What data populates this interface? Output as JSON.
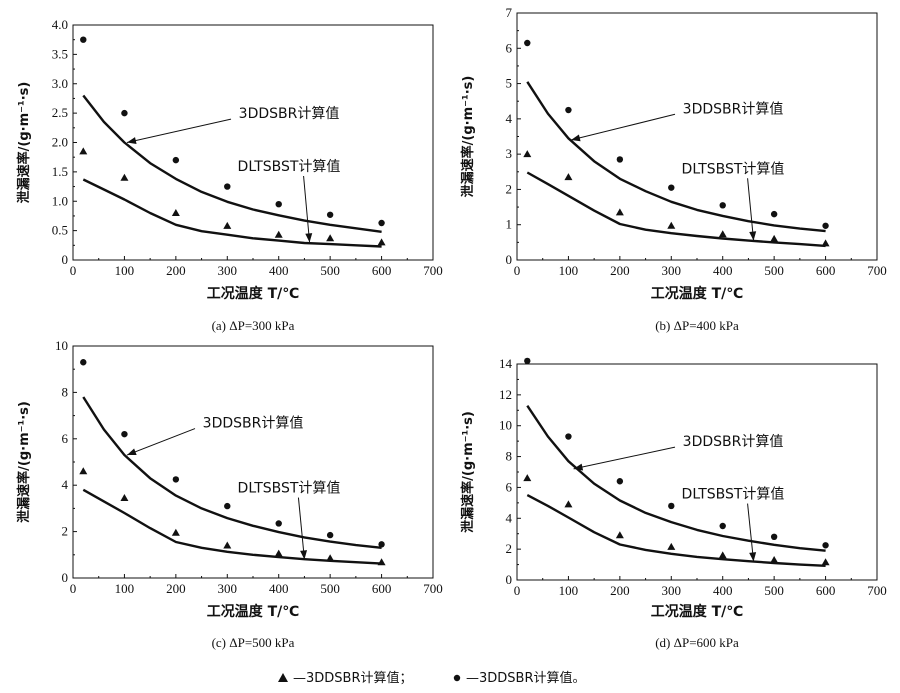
{
  "chart_data": [
    {
      "type": "line",
      "caption": "(a) ΔP=300 kPa",
      "xlabel": "工况温度 T/℃",
      "ylabel": "泄漏速率/(g·m⁻¹·s)",
      "xlim": [
        0,
        700
      ],
      "ylim": [
        0,
        4.0
      ],
      "xticks": [
        "0",
        "100",
        "200",
        "300",
        "400",
        "500",
        "600",
        "700"
      ],
      "yticks": [
        "0",
        "0.5",
        "1.0",
        "1.5",
        "2.0",
        "2.5",
        "3.0",
        "3.5",
        "4.0"
      ],
      "series": [
        {
          "name": "3DDSBR计算值",
          "marker": "circle",
          "x": [
            20,
            100,
            200,
            300,
            400,
            500,
            600
          ],
          "y": [
            3.75,
            2.5,
            1.7,
            1.25,
            0.95,
            0.77,
            0.63
          ]
        },
        {
          "name": "3DDSBR计算值",
          "marker": "triangle",
          "x": [
            20,
            100,
            200,
            300,
            400,
            500,
            600
          ],
          "y": [
            1.85,
            1.4,
            0.8,
            0.58,
            0.43,
            0.37,
            0.3
          ]
        },
        {
          "name": "3DDSBR计算值",
          "style": "line",
          "x": [
            20,
            60,
            100,
            150,
            200,
            250,
            300,
            350,
            400,
            450,
            500,
            550,
            600
          ],
          "y": [
            2.8,
            2.35,
            2.0,
            1.65,
            1.38,
            1.16,
            0.99,
            0.86,
            0.76,
            0.67,
            0.6,
            0.54,
            0.48
          ]
        },
        {
          "name": "DLTSBST计算值",
          "style": "line",
          "x": [
            20,
            60,
            100,
            150,
            200,
            250,
            300,
            350,
            400,
            450,
            500,
            550,
            600
          ],
          "y": [
            1.37,
            1.2,
            1.03,
            0.8,
            0.6,
            0.49,
            0.43,
            0.37,
            0.33,
            0.29,
            0.27,
            0.25,
            0.23
          ]
        }
      ],
      "annotations": [
        {
          "text": "3DDSBR计算值",
          "x": 420,
          "y": 2.5,
          "target": [
            105,
            2.0
          ]
        },
        {
          "text": "DLTSBST计算值",
          "x": 420,
          "y": 1.6,
          "target": [
            460,
            0.3
          ]
        }
      ]
    },
    {
      "type": "line",
      "caption": "(b) ΔP=400 kPa",
      "xlabel": "工况温度 T/℃",
      "ylabel": "泄漏速率/(g·m⁻¹·s)",
      "xlim": [
        0,
        700
      ],
      "ylim": [
        0,
        7
      ],
      "xticks": [
        "0",
        "100",
        "200",
        "300",
        "400",
        "500",
        "600",
        "700"
      ],
      "yticks": [
        "0",
        "1",
        "2",
        "3",
        "4",
        "5",
        "6",
        "7"
      ],
      "series": [
        {
          "name": "3DDSBR计算值",
          "marker": "circle",
          "x": [
            20,
            100,
            200,
            300,
            400,
            500,
            600
          ],
          "y": [
            6.15,
            4.25,
            2.85,
            2.05,
            1.55,
            1.3,
            0.97
          ]
        },
        {
          "name": "3DDSBR计算值",
          "marker": "triangle",
          "x": [
            20,
            100,
            200,
            300,
            400,
            500,
            600
          ],
          "y": [
            3.0,
            2.35,
            1.35,
            0.97,
            0.73,
            0.6,
            0.47
          ]
        },
        {
          "name": "3DDSBR计算值",
          "style": "line",
          "x": [
            20,
            60,
            100,
            150,
            200,
            250,
            300,
            350,
            400,
            450,
            500,
            550,
            600
          ],
          "y": [
            5.05,
            4.15,
            3.45,
            2.8,
            2.3,
            1.95,
            1.65,
            1.42,
            1.25,
            1.1,
            0.98,
            0.89,
            0.82
          ]
        },
        {
          "name": "DLTSBST计算值",
          "style": "line",
          "x": [
            20,
            60,
            100,
            150,
            200,
            250,
            300,
            350,
            400,
            450,
            500,
            550,
            600
          ],
          "y": [
            2.48,
            2.15,
            1.82,
            1.4,
            1.02,
            0.86,
            0.76,
            0.68,
            0.61,
            0.55,
            0.5,
            0.45,
            0.4
          ]
        }
      ],
      "annotations": [
        {
          "text": "3DDSBR计算值",
          "x": 420,
          "y": 4.3,
          "target": [
            105,
            3.4
          ]
        },
        {
          "text": "DLTSBST计算值",
          "x": 420,
          "y": 2.6,
          "target": [
            460,
            0.55
          ]
        }
      ]
    },
    {
      "type": "line",
      "caption": "(c) ΔP=500 kPa",
      "xlabel": "工况温度 T/℃",
      "ylabel": "泄漏速率/(g·m⁻¹·s)",
      "xlim": [
        0,
        700
      ],
      "ylim": [
        0,
        10
      ],
      "xticks": [
        "0",
        "100",
        "200",
        "300",
        "400",
        "500",
        "600",
        "700"
      ],
      "yticks": [
        "0",
        "2",
        "4",
        "6",
        "8",
        "10"
      ],
      "series": [
        {
          "name": "3DDSBR计算值",
          "marker": "circle",
          "x": [
            20,
            100,
            200,
            300,
            400,
            500,
            600
          ],
          "y": [
            9.3,
            6.2,
            4.25,
            3.1,
            2.35,
            1.85,
            1.45
          ]
        },
        {
          "name": "3DDSBR计算值",
          "marker": "triangle",
          "x": [
            20,
            100,
            200,
            300,
            400,
            500,
            600
          ],
          "y": [
            4.6,
            3.45,
            1.95,
            1.4,
            1.05,
            0.85,
            0.68
          ]
        },
        {
          "name": "3DDSBR计算值",
          "style": "line",
          "x": [
            20,
            60,
            100,
            150,
            200,
            250,
            300,
            350,
            400,
            450,
            500,
            550,
            600
          ],
          "y": [
            7.8,
            6.4,
            5.3,
            4.3,
            3.55,
            3.0,
            2.58,
            2.25,
            1.98,
            1.75,
            1.57,
            1.42,
            1.3
          ]
        },
        {
          "name": "DLTSBST计算值",
          "style": "line",
          "x": [
            20,
            60,
            100,
            150,
            200,
            250,
            300,
            350,
            400,
            450,
            500,
            550,
            600
          ],
          "y": [
            3.8,
            3.3,
            2.8,
            2.15,
            1.55,
            1.3,
            1.13,
            1.0,
            0.9,
            0.81,
            0.74,
            0.68,
            0.62
          ]
        }
      ],
      "annotations": [
        {
          "text": "3DDSBR计算值",
          "x": 350,
          "y": 6.7,
          "target": [
            105,
            5.3
          ]
        },
        {
          "text": "DLTSBST计算值",
          "x": 420,
          "y": 3.9,
          "target": [
            450,
            0.8
          ]
        }
      ]
    },
    {
      "type": "line",
      "caption": "(d) ΔP=600 kPa",
      "xlabel": "工况温度 T/℃",
      "ylabel": "泄漏速率/(g·m⁻¹·s)",
      "xlim": [
        0,
        700
      ],
      "ylim": [
        0,
        14
      ],
      "xticks": [
        "0",
        "100",
        "200",
        "300",
        "400",
        "500",
        "600",
        "700"
      ],
      "yticks": [
        "0",
        "2",
        "4",
        "6",
        "8",
        "10",
        "12",
        "14"
      ],
      "series": [
        {
          "name": "3DDSBR计算值",
          "marker": "circle",
          "x": [
            20,
            100,
            200,
            300,
            400,
            500,
            600
          ],
          "y": [
            14.2,
            9.3,
            6.4,
            4.8,
            3.5,
            2.8,
            2.25
          ]
        },
        {
          "name": "3DDSBR计算值",
          "marker": "triangle",
          "x": [
            20,
            100,
            200,
            300,
            400,
            500,
            600
          ],
          "y": [
            6.6,
            4.9,
            2.9,
            2.15,
            1.6,
            1.3,
            1.15
          ]
        },
        {
          "name": "3DDSBR计算值",
          "style": "line",
          "x": [
            20,
            60,
            100,
            150,
            200,
            250,
            300,
            350,
            400,
            450,
            500,
            550,
            600
          ],
          "y": [
            11.3,
            9.3,
            7.7,
            6.25,
            5.15,
            4.35,
            3.75,
            3.25,
            2.85,
            2.55,
            2.28,
            2.06,
            1.9
          ]
        },
        {
          "name": "DLTSBST计算值",
          "style": "line",
          "x": [
            20,
            60,
            100,
            150,
            200,
            250,
            300,
            350,
            400,
            450,
            500,
            550,
            600
          ],
          "y": [
            5.5,
            4.8,
            4.05,
            3.1,
            2.3,
            1.95,
            1.7,
            1.5,
            1.35,
            1.22,
            1.1,
            1.0,
            0.92
          ]
        }
      ],
      "annotations": [
        {
          "text": "3DDSBR计算值",
          "x": 420,
          "y": 9.0,
          "target": [
            110,
            7.2
          ]
        },
        {
          "text": "DLTSBST计算值",
          "x": 420,
          "y": 5.6,
          "target": [
            460,
            1.2
          ]
        }
      ]
    }
  ],
  "legend": {
    "triangle_label": "—3DDSBR计算值；",
    "circle_label": "—3DDSBR计算值。"
  }
}
